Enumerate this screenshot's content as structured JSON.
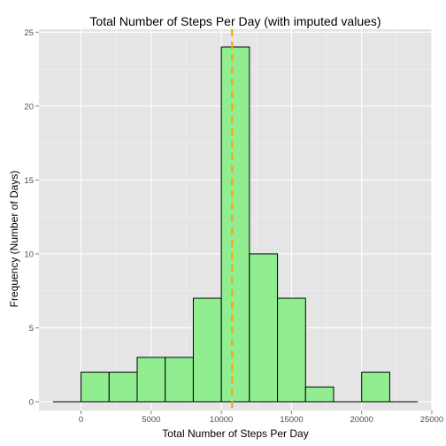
{
  "chart_data": {
    "type": "bar",
    "title": "Total Number of Steps Per Day (with imputed values)",
    "xlabel": "Total Number of Steps Per Day",
    "ylabel": "Frequency (Number of Days)",
    "xlim": [
      -3000,
      25000
    ],
    "ylim": [
      -0.6,
      25.2
    ],
    "x_ticks": [
      0,
      5000,
      10000,
      15000,
      20000,
      25000
    ],
    "x_tick_labels": [
      "0",
      "5000",
      "10000",
      "15000",
      "20000",
      "25000"
    ],
    "y_ticks": [
      0,
      5,
      10,
      15,
      20,
      25
    ],
    "y_tick_labels": [
      "0",
      "5",
      "10",
      "15",
      "20",
      "25"
    ],
    "bin_width": 2000,
    "bins": [
      {
        "start": -2000,
        "end": 0,
        "count": 0
      },
      {
        "start": 0,
        "end": 2000,
        "count": 2
      },
      {
        "start": 2000,
        "end": 4000,
        "count": 2
      },
      {
        "start": 4000,
        "end": 6000,
        "count": 3
      },
      {
        "start": 6000,
        "end": 8000,
        "count": 3
      },
      {
        "start": 8000,
        "end": 10000,
        "count": 7
      },
      {
        "start": 10000,
        "end": 12000,
        "count": 24
      },
      {
        "start": 12000,
        "end": 14000,
        "count": 10
      },
      {
        "start": 14000,
        "end": 16000,
        "count": 7
      },
      {
        "start": 16000,
        "end": 18000,
        "count": 1
      },
      {
        "start": 18000,
        "end": 20000,
        "count": 0
      },
      {
        "start": 20000,
        "end": 22000,
        "count": 2
      },
      {
        "start": 22000,
        "end": 24000,
        "count": 0
      }
    ],
    "reference_line": {
      "x": 10766,
      "style": "dashed"
    },
    "grid": true,
    "legend": "none",
    "colors": {
      "bar_fill": "#90ee90",
      "bar_stroke": "#000000",
      "panel": "#e5e5e5",
      "grid_major": "#ffffff",
      "grid_minor": "#f2f2f2",
      "reference_line": "#ffa500"
    }
  }
}
